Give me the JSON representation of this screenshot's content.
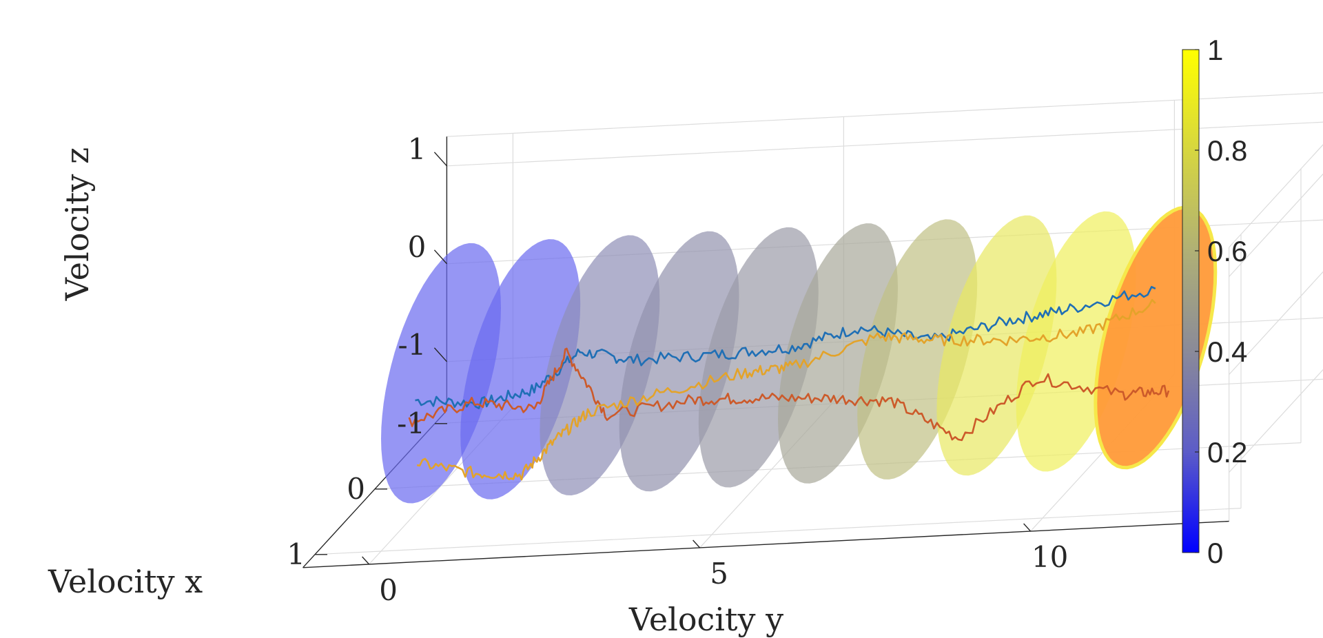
{
  "chart_data": {
    "type": "3d-line",
    "xlabel": "Velocity x",
    "ylabel": "Velocity y",
    "zlabel": "Velocity z",
    "x_ticks": [
      "-1",
      "0",
      "1"
    ],
    "y_ticks": [
      "0",
      "5",
      "10"
    ],
    "z_ticks": [
      "1",
      "0",
      "-1"
    ],
    "xlim": [
      -1.2,
      1.2
    ],
    "ylim": [
      -1,
      13
    ],
    "zlim": [
      -1.5,
      1.3
    ],
    "grid": true,
    "colorbar": {
      "ticks": [
        "1",
        "0.8",
        "0.6",
        "0.4",
        "0.2",
        "0"
      ],
      "range": [
        0,
        1
      ],
      "colormap": [
        "#0000ff",
        "#5c5cc8",
        "#8a8a99",
        "#b0b075",
        "#d6d640",
        "#ffff00"
      ]
    },
    "ellipse_slices": [
      {
        "y": 0.0,
        "value": 0.2,
        "color": "#6a6af0"
      },
      {
        "y": 1.2,
        "value": 0.25,
        "color": "#6a6af0"
      },
      {
        "y": 2.4,
        "value": 0.42,
        "color": "#8e8eb6"
      },
      {
        "y": 3.6,
        "value": 0.45,
        "color": "#9393ae"
      },
      {
        "y": 4.8,
        "value": 0.5,
        "color": "#9b9ba8"
      },
      {
        "y": 6.0,
        "value": 0.58,
        "color": "#a8a89a"
      },
      {
        "y": 7.2,
        "value": 0.68,
        "color": "#c0c084"
      },
      {
        "y": 8.4,
        "value": 0.85,
        "color": "#e8e862"
      },
      {
        "y": 9.6,
        "value": 0.92,
        "color": "#f0f05c"
      },
      {
        "y": 10.8,
        "value": 1.0,
        "color": "#ff9a38"
      }
    ],
    "series": [
      {
        "color": "#1f6fb5",
        "points": [
          [
            0.1,
            -0.3,
            -0.55
          ],
          [
            0.2,
            0.8,
            -0.55
          ],
          [
            0.1,
            1.5,
            -0.5
          ],
          [
            0.0,
            2.1,
            -0.2
          ],
          [
            0.1,
            3.0,
            -0.25
          ],
          [
            0.0,
            4.2,
            -0.3
          ],
          [
            0.1,
            5.4,
            -0.2
          ],
          [
            0.0,
            6.3,
            -0.1
          ],
          [
            0.1,
            7.5,
            -0.2
          ],
          [
            0.0,
            8.6,
            -0.1
          ],
          [
            0.1,
            9.6,
            0.05
          ],
          [
            0.0,
            10.8,
            0.15
          ]
        ]
      },
      {
        "color": "#cc5a2a",
        "points": [
          [
            0.2,
            -0.3,
            -0.7
          ],
          [
            0.1,
            0.6,
            -0.6
          ],
          [
            0.1,
            1.5,
            -0.7
          ],
          [
            0.0,
            1.9,
            -0.2
          ],
          [
            0.1,
            2.6,
            -0.8
          ],
          [
            0.0,
            3.8,
            -0.75
          ],
          [
            0.1,
            4.8,
            -0.7
          ],
          [
            0.0,
            5.8,
            -0.8
          ],
          [
            0.1,
            6.9,
            -0.8
          ],
          [
            0.2,
            8.0,
            -1.15
          ],
          [
            0.0,
            9.0,
            -0.7
          ],
          [
            0.1,
            10.4,
            -0.85
          ],
          [
            0.0,
            11.0,
            -0.9
          ]
        ]
      },
      {
        "color": "#e3a32a",
        "points": [
          [
            0.4,
            0.0,
            -1.0
          ],
          [
            0.3,
            0.8,
            -1.2
          ],
          [
            0.2,
            1.4,
            -1.3
          ],
          [
            0.3,
            2.0,
            -0.9
          ],
          [
            0.2,
            2.4,
            -0.7
          ],
          [
            0.1,
            3.4,
            -0.6
          ],
          [
            0.0,
            4.6,
            -0.5
          ],
          [
            0.1,
            5.4,
            -0.4
          ],
          [
            0.0,
            6.6,
            -0.2
          ],
          [
            0.1,
            7.6,
            -0.2
          ],
          [
            0.0,
            8.6,
            -0.3
          ],
          [
            0.1,
            9.8,
            -0.2
          ],
          [
            0.0,
            10.8,
            0.0
          ]
        ]
      }
    ]
  }
}
